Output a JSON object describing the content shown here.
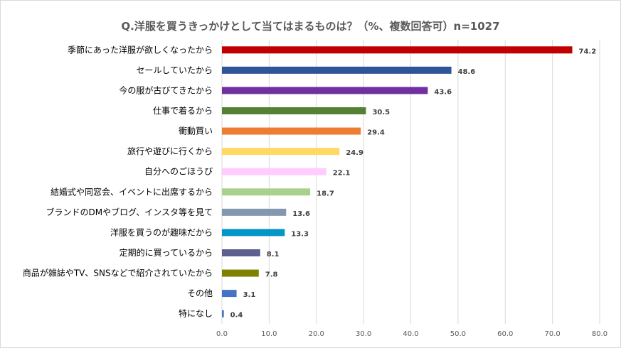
{
  "chart_data": {
    "type": "bar",
    "orientation": "horizontal",
    "title": "Q.洋服を買うきっかけとして当てはまるものは？（%、複数回答可）n=1027",
    "xlim": [
      0,
      80
    ],
    "ticks": [
      "0.0",
      "10.0",
      "20.0",
      "30.0",
      "40.0",
      "50.0",
      "60.0",
      "70.0",
      "80.0"
    ],
    "grid": true,
    "categories": [
      "季節にあった洋服が欲しくなったから",
      "セールしていたから",
      "今の服が古びてきたから",
      "仕事で着るから",
      "衝動買い",
      "旅行や遊びに行くから",
      "自分へのごほうび",
      "結婚式や同窓会、イベントに出席するから",
      "ブランドのDMやブログ、インスタ等を見て",
      "洋服を買うのが趣味だから",
      "定期的に買っているから",
      "商品が雑誌やTV、SNSなどで紹介されていたから",
      "その他",
      "特になし"
    ],
    "values": [
      74.2,
      48.6,
      43.6,
      30.5,
      29.4,
      24.9,
      22.1,
      18.7,
      13.6,
      13.3,
      8.1,
      7.8,
      3.1,
      0.4
    ],
    "value_labels": [
      "74.2",
      "48.6",
      "43.6",
      "30.5",
      "29.4",
      "24.9",
      "22.1",
      "18.7",
      "13.6",
      "13.3",
      "8.1",
      "7.8",
      "3.1",
      "0.4"
    ],
    "colors": [
      "#c00000",
      "#2f5597",
      "#7030a0",
      "#548235",
      "#ed7d31",
      "#ffd966",
      "#ffccff",
      "#a9d18e",
      "#8497b0",
      "#0096c8",
      "#5f5f8f",
      "#7f7f00",
      "#4472c4",
      "#4472c4"
    ]
  }
}
